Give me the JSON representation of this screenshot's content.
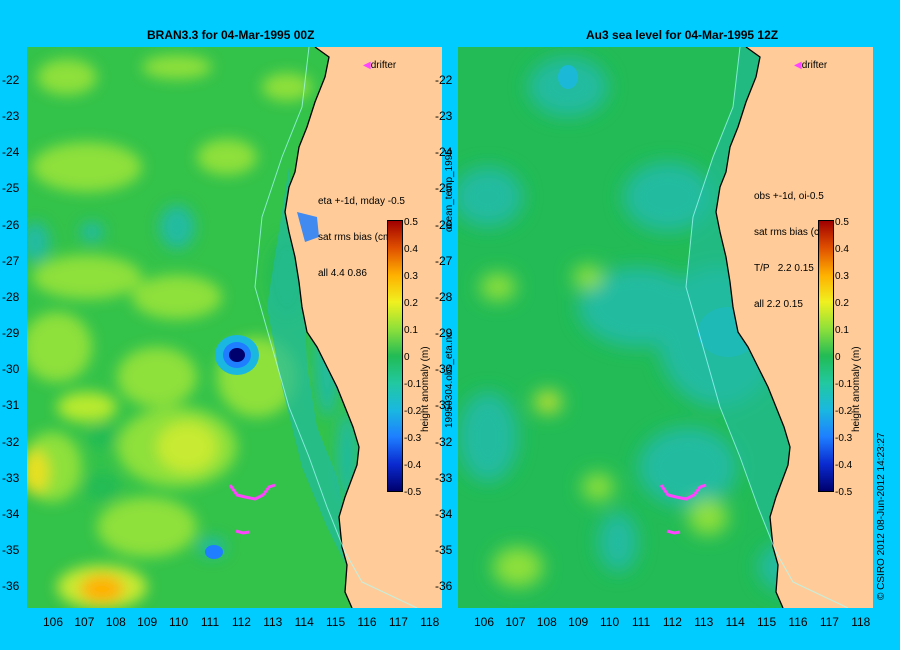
{
  "left_panel": {
    "title": "BRAN3.3  for 04-Mar-1995 00Z",
    "drifter_label": "drifter",
    "info_lines": [
      "eta +-1d, mday -0.5",
      "sat rms bias (cm)",
      "all 4.4 0.86"
    ],
    "colorbar_label": "height anomaly (m)",
    "side_label_top": "ocean_temp_1995",
    "side_label_bottom": "19950304.obs_eta.nc"
  },
  "right_panel": {
    "title": "Au3 sea level  for 04-Mar-1995 12Z",
    "drifter_label": "drifter",
    "info_lines": [
      "obs +-1d, oi-0.5",
      "sat rms bias (cm)",
      "T/P   2.2 0.15",
      "all 2.2 0.15"
    ],
    "colorbar_label": "height anomaly (m)",
    "side_label": "© CSIRO 2012   08-Jun-2012 14:23:27"
  },
  "lat_ticks": [
    "-22",
    "-23",
    "-24",
    "-25",
    "-26",
    "-27",
    "-28",
    "-29",
    "-30",
    "-31",
    "-32",
    "-33",
    "-34",
    "-35",
    "-36"
  ],
  "lon_ticks": [
    "106",
    "107",
    "108",
    "109",
    "110",
    "111",
    "112",
    "113",
    "114",
    "115",
    "116",
    "117",
    "118"
  ],
  "colorbar_ticks": [
    "0.5",
    "0.4",
    "0.3",
    "0.2",
    "0.1",
    "0",
    "-0.1",
    "-0.2",
    "-0.3",
    "-0.4",
    "-0.5"
  ],
  "colors": {
    "background": "#00ccff",
    "land": "#ffcc99",
    "drifter": "#ff44ff",
    "colormap": [
      "#00006e",
      "#0a2ad0",
      "#1e7eff",
      "#1ab8e0",
      "#22c8a0",
      "#22bb55",
      "#8ee03a",
      "#f0f020",
      "#ffb000",
      "#e05000",
      "#a00000"
    ]
  }
}
